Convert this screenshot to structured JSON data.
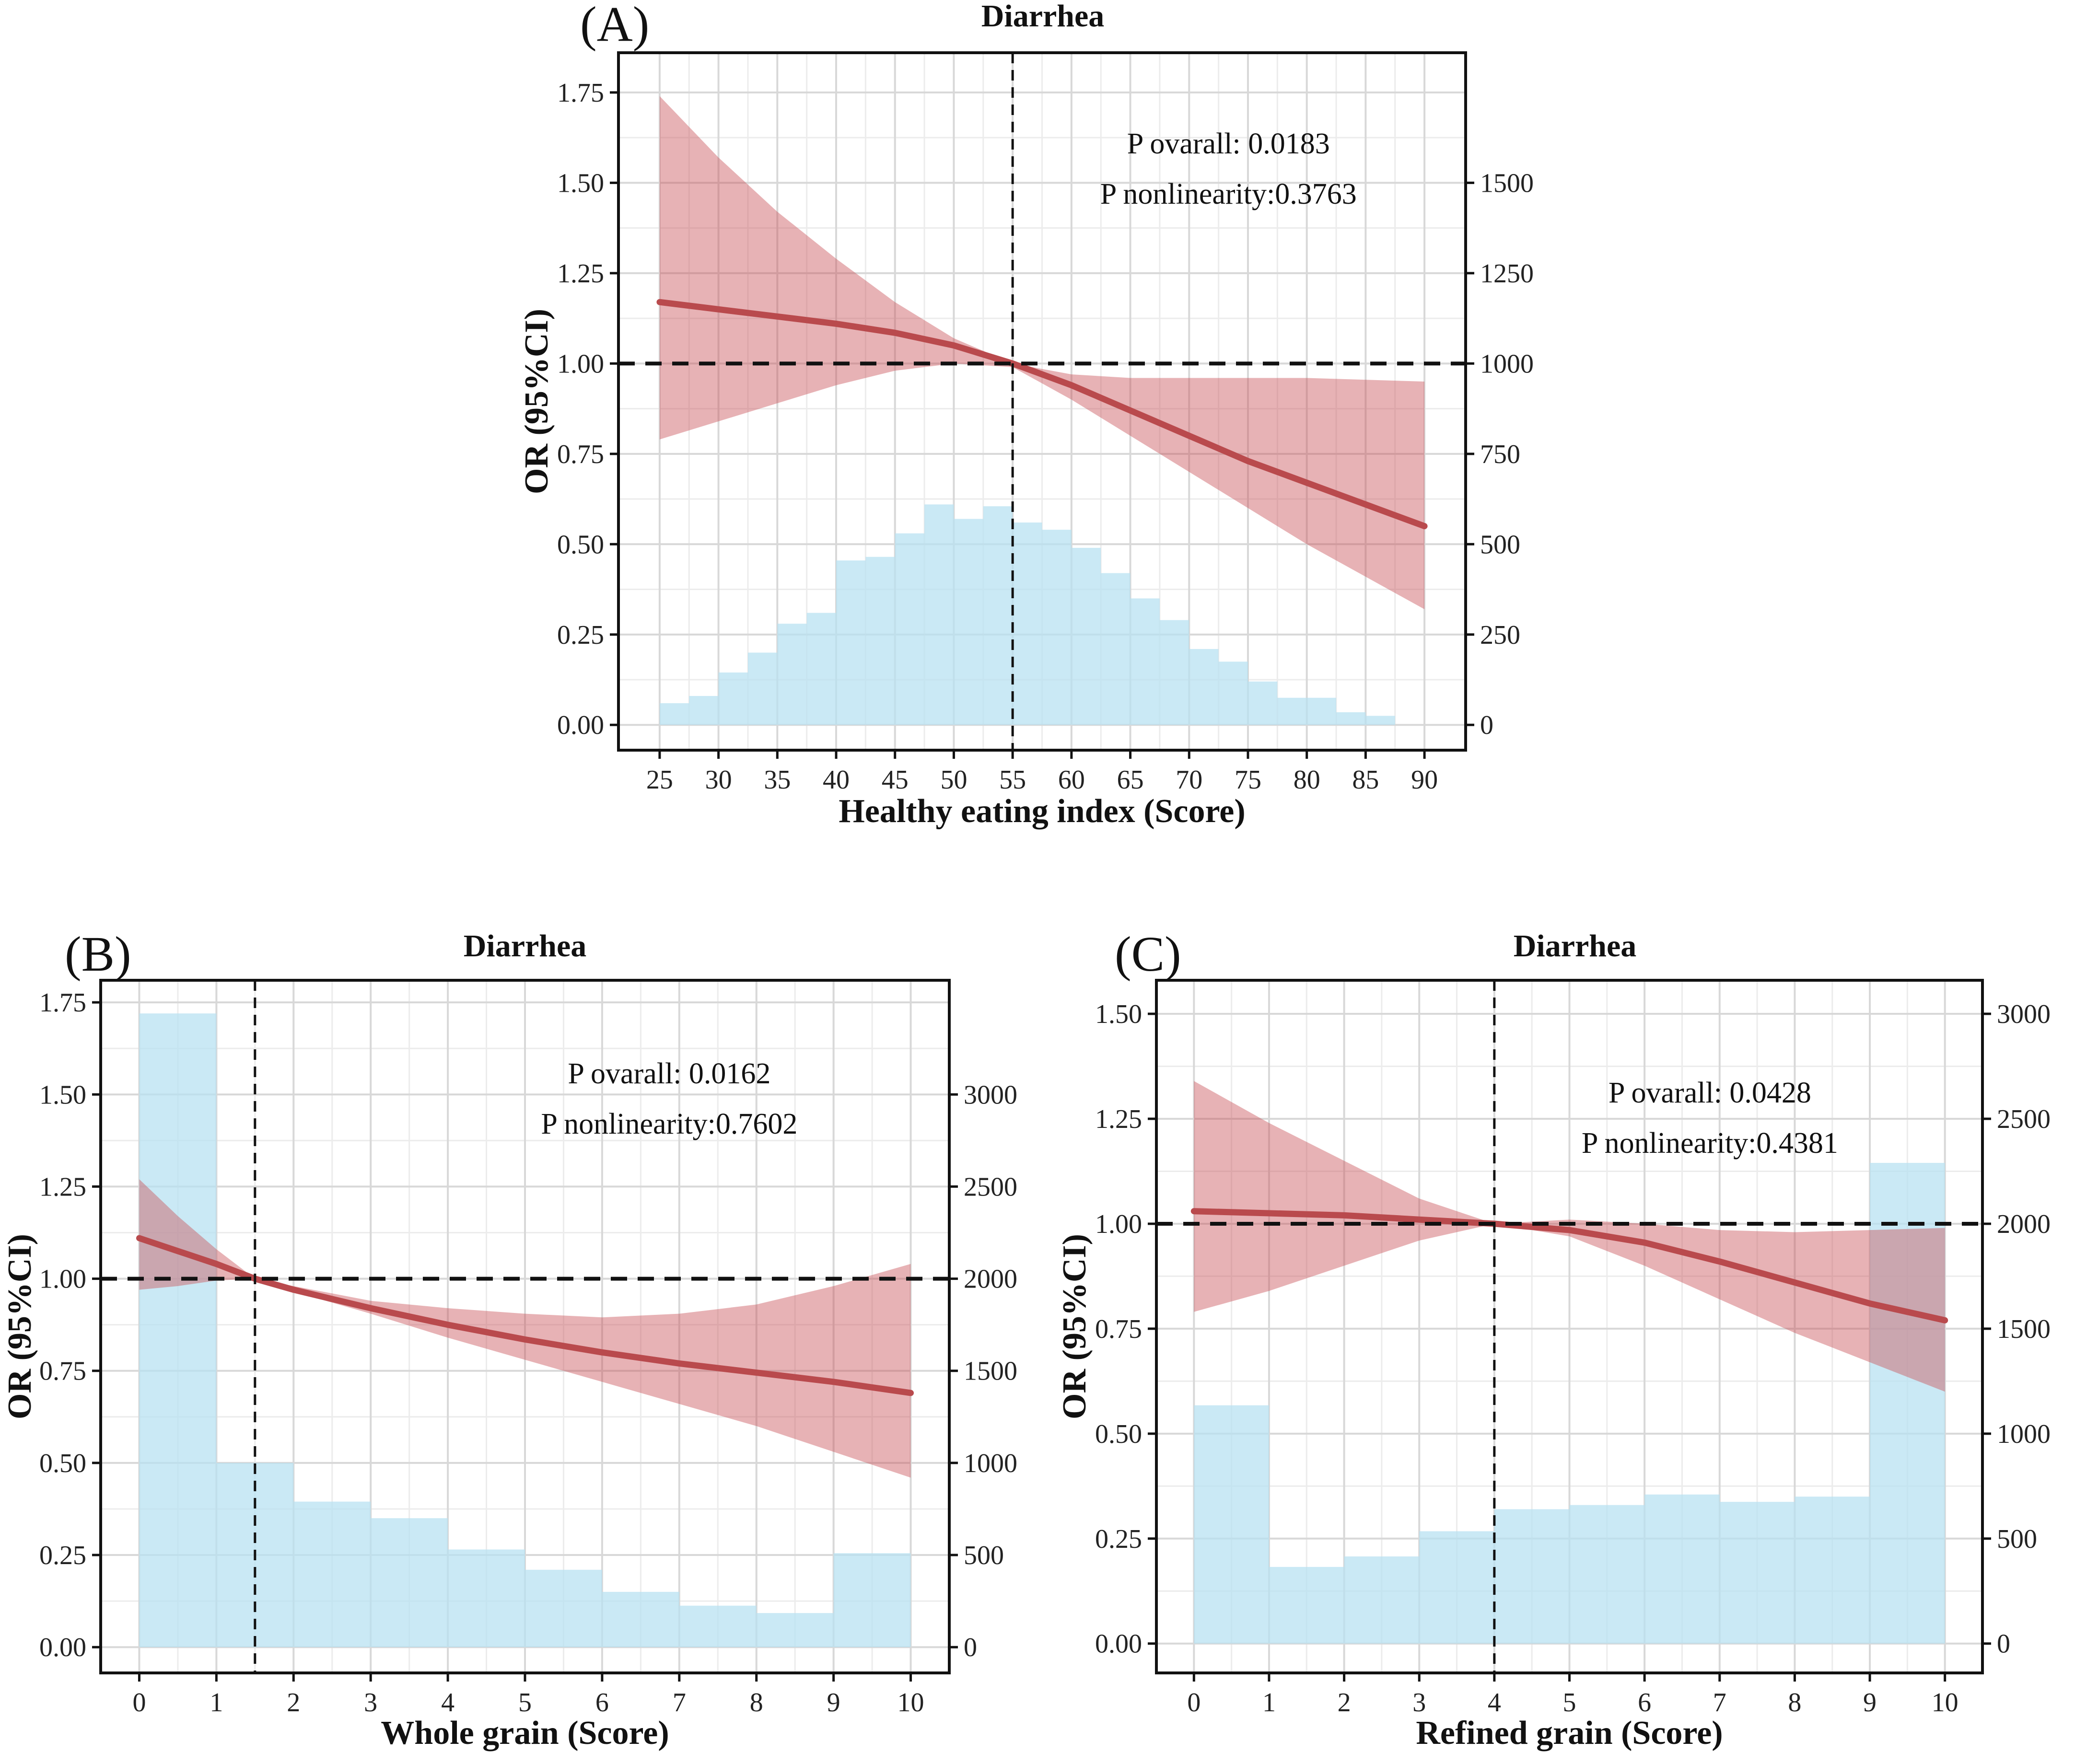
{
  "colors": {
    "band": "#c9555a",
    "line": "#b94a4d",
    "hist": "#b8e2f2",
    "text": "#111111"
  },
  "chart_data": [
    {
      "type": "line",
      "panel_label": "(A)",
      "title": "Diarrhea",
      "xlabel": "Healthy eating index (Score)",
      "ylabel": "OR (95%CI)",
      "xlim": [
        21.5,
        93.5
      ],
      "ylim": [
        -0.07,
        1.86
      ],
      "xticks": [
        25,
        30,
        35,
        40,
        45,
        50,
        55,
        60,
        65,
        70,
        75,
        80,
        85,
        90
      ],
      "xtick_labels": [
        "25",
        "30",
        "35",
        "40",
        "45",
        "50",
        "55",
        "60",
        "65",
        "70",
        "75",
        "80",
        "85",
        "90"
      ],
      "yticks": [
        0,
        0.25,
        0.5,
        0.75,
        1.0,
        1.25,
        1.5,
        1.75
      ],
      "ytick_labels": [
        "0.00",
        "0.25",
        "0.50",
        "0.75",
        "1.00",
        "1.25",
        "1.50",
        "1.75"
      ],
      "y2_max": 1750,
      "y2ticks": [
        0,
        250,
        500,
        750,
        1000,
        1250,
        1500
      ],
      "y2tick_labels": [
        "0",
        "250",
        "500",
        "750",
        "1000",
        "1250",
        "1500"
      ],
      "reference_x": 55,
      "reference_y": 1.0,
      "annotations": [
        "P ovarall: 0.0183",
        "P nonlinearity:0.3763"
      ],
      "or_curve": {
        "x": [
          25,
          30,
          35,
          40,
          45,
          50,
          55,
          60,
          65,
          70,
          75,
          80,
          85,
          90
        ],
        "or": [
          1.17,
          1.15,
          1.13,
          1.11,
          1.085,
          1.05,
          1.0,
          0.94,
          0.87,
          0.8,
          0.73,
          0.67,
          0.61,
          0.55
        ],
        "lower": [
          0.79,
          0.84,
          0.89,
          0.94,
          0.98,
          1.0,
          0.99,
          0.9,
          0.8,
          0.7,
          0.6,
          0.5,
          0.41,
          0.32
        ],
        "upper": [
          1.74,
          1.57,
          1.42,
          1.29,
          1.17,
          1.07,
          1.0,
          0.97,
          0.96,
          0.96,
          0.96,
          0.96,
          0.955,
          0.95
        ]
      },
      "histogram": {
        "bin_width": 2.5,
        "start": 25,
        "counts": [
          60,
          80,
          145,
          200,
          280,
          310,
          455,
          465,
          530,
          610,
          570,
          605,
          560,
          540,
          490,
          420,
          350,
          290,
          210,
          175,
          120,
          75,
          75,
          35,
          25
        ]
      }
    },
    {
      "type": "line",
      "panel_label": "(B)",
      "title": "Diarrhea",
      "xlabel": "Whole grain (Score)",
      "ylabel": "OR (95%CI)",
      "xlim": [
        -0.5,
        10.5
      ],
      "ylim": [
        -0.07,
        1.81
      ],
      "xticks": [
        0,
        1,
        2,
        3,
        4,
        5,
        6,
        7,
        8,
        9,
        10
      ],
      "xtick_labels": [
        "0",
        "1",
        "2",
        "3",
        "4",
        "5",
        "6",
        "7",
        "8",
        "9",
        "10"
      ],
      "yticks": [
        0,
        0.25,
        0.5,
        0.75,
        1.0,
        1.25,
        1.5,
        1.75
      ],
      "ytick_labels": [
        "0.00",
        "0.25",
        "0.50",
        "0.75",
        "1.00",
        "1.25",
        "1.50",
        "1.75"
      ],
      "y2_max": 3500,
      "y2ticks": [
        0,
        500,
        1000,
        1500,
        2000,
        2500,
        3000
      ],
      "y2tick_labels": [
        "0",
        "500",
        "1000",
        "1500",
        "2000",
        "2500",
        "3000"
      ],
      "reference_x": 1.5,
      "reference_y": 1.0,
      "annotations": [
        "P ovarall: 0.0162",
        "P nonlinearity:0.7602"
      ],
      "or_curve": {
        "x": [
          0,
          0.5,
          1,
          1.5,
          2,
          2.5,
          3,
          4,
          5,
          6,
          7,
          8,
          9,
          10
        ],
        "or": [
          1.11,
          1.075,
          1.04,
          1.0,
          0.97,
          0.945,
          0.92,
          0.875,
          0.835,
          0.8,
          0.77,
          0.745,
          0.72,
          0.69
        ],
        "lower": [
          0.97,
          0.98,
          0.995,
          1.0,
          0.965,
          0.935,
          0.905,
          0.84,
          0.78,
          0.72,
          0.66,
          0.6,
          0.53,
          0.46
        ],
        "upper": [
          1.27,
          1.17,
          1.08,
          1.0,
          0.98,
          0.96,
          0.94,
          0.92,
          0.905,
          0.895,
          0.905,
          0.93,
          0.98,
          1.04
        ]
      },
      "histogram": {
        "bin_width": 1,
        "start": 0,
        "counts": [
          3440,
          1000,
          790,
          700,
          530,
          420,
          300,
          225,
          185,
          510
        ]
      }
    },
    {
      "type": "line",
      "panel_label": "(C)",
      "title": "Diarrhea",
      "xlabel": "Refined grain (Score)",
      "ylabel": "OR (95%CI)",
      "xlim": [
        -0.5,
        10.5
      ],
      "ylim": [
        -0.07,
        1.58
      ],
      "xticks": [
        0,
        1,
        2,
        3,
        4,
        5,
        6,
        7,
        8,
        9,
        10
      ],
      "xtick_labels": [
        "0",
        "1",
        "2",
        "3",
        "4",
        "5",
        "6",
        "7",
        "8",
        "9",
        "10"
      ],
      "yticks": [
        0,
        0.25,
        0.5,
        0.75,
        1.0,
        1.25,
        1.5
      ],
      "ytick_labels": [
        "0.00",
        "0.25",
        "0.50",
        "0.75",
        "1.00",
        "1.25",
        "1.50"
      ],
      "y2_max": 3000,
      "y2ticks": [
        0,
        500,
        1000,
        1500,
        2000,
        2500,
        3000
      ],
      "y2tick_labels": [
        "0",
        "500",
        "1000",
        "1500",
        "2000",
        "2500",
        "3000"
      ],
      "reference_x": 4,
      "reference_y": 1.0,
      "annotations": [
        "P ovarall: 0.0428",
        "P nonlinearity:0.4381"
      ],
      "or_curve": {
        "x": [
          0,
          1,
          2,
          3,
          4,
          5,
          6,
          7,
          8,
          9,
          10
        ],
        "or": [
          1.03,
          1.025,
          1.02,
          1.01,
          1.0,
          0.985,
          0.955,
          0.91,
          0.86,
          0.81,
          0.77
        ],
        "lower": [
          0.79,
          0.84,
          0.9,
          0.96,
          1.0,
          0.97,
          0.9,
          0.82,
          0.74,
          0.67,
          0.6
        ],
        "upper": [
          1.34,
          1.24,
          1.15,
          1.06,
          1.0,
          1.01,
          1.0,
          0.985,
          0.98,
          0.985,
          0.99
        ]
      },
      "histogram": {
        "bin_width": 1,
        "start": 0,
        "counts": [
          1135,
          365,
          415,
          535,
          640,
          660,
          710,
          675,
          700,
          2290
        ]
      }
    }
  ]
}
